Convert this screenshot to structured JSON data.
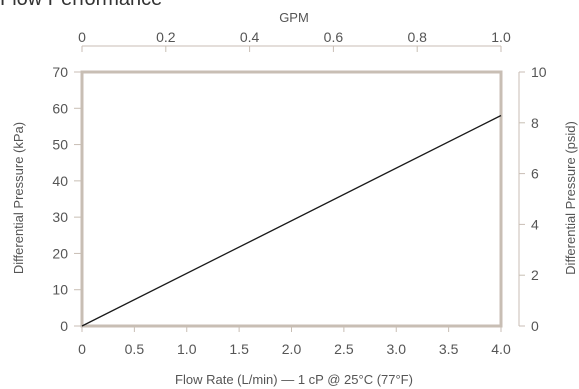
{
  "chart_data": {
    "type": "line",
    "title": "Flow Performance",
    "xlabel": "Flow Rate (L/min) — 1 cP @ 25°C (77°F)",
    "ylabel": "Differential Pressure (kPa)",
    "x2label": "GPM",
    "y2label": "Differential Pressure (psid)",
    "xlim": [
      0,
      4.0
    ],
    "ylim": [
      0,
      70
    ],
    "x2lim": [
      0,
      1.0
    ],
    "y2lim": [
      0,
      10
    ],
    "xticks": [
      "0",
      "0.5",
      "1.0",
      "1.5",
      "2.0",
      "2.5",
      "3.0",
      "3.5",
      "4.0"
    ],
    "yticks": [
      "0",
      "10",
      "20",
      "30",
      "40",
      "50",
      "60",
      "70"
    ],
    "x2ticks": [
      "0",
      "0.2",
      "0.4",
      "0.6",
      "0.8",
      "1.0"
    ],
    "y2ticks": [
      "0",
      "2",
      "4",
      "6",
      "8",
      "10"
    ],
    "series": [
      {
        "x": [
          0,
          4.0
        ],
        "y": [
          0,
          58
        ]
      }
    ],
    "grid": false,
    "colors": {
      "frame": "#c8beb4",
      "line": "#1a1a1a",
      "text": "#555555"
    }
  }
}
